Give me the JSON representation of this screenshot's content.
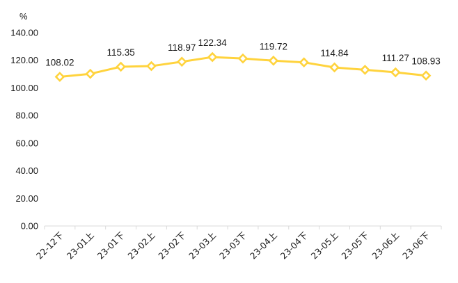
{
  "chart_data": {
    "type": "line",
    "unit": "%",
    "ylim": [
      0,
      140
    ],
    "yticks": [
      "0.00",
      "20.00",
      "40.00",
      "60.00",
      "80.00",
      "100.00",
      "120.00",
      "140.00"
    ],
    "categories": [
      "22-12下",
      "23-01上",
      "23-01下",
      "23-02上",
      "23-02下",
      "23-03上",
      "23-03下",
      "23-04上",
      "23-04下",
      "23-05上",
      "23-05下",
      "23-06上",
      "23-06下"
    ],
    "series": [
      {
        "values": [
          108.02,
          110.2,
          115.35,
          115.8,
          118.97,
          122.34,
          121.3,
          119.72,
          118.5,
          114.84,
          113.1,
          111.27,
          108.93
        ],
        "labels": [
          "108.02",
          "",
          "115.35",
          "",
          "118.97",
          "122.34",
          "",
          "119.72",
          "",
          "114.84",
          "",
          "111.27",
          "108.93"
        ]
      }
    ],
    "grid": false,
    "legend": "none",
    "colors": {
      "line": "#ffd33d",
      "marker_fill": "#ffffff",
      "axis": "#d9d9d9",
      "text": "#1a1a1a"
    }
  }
}
